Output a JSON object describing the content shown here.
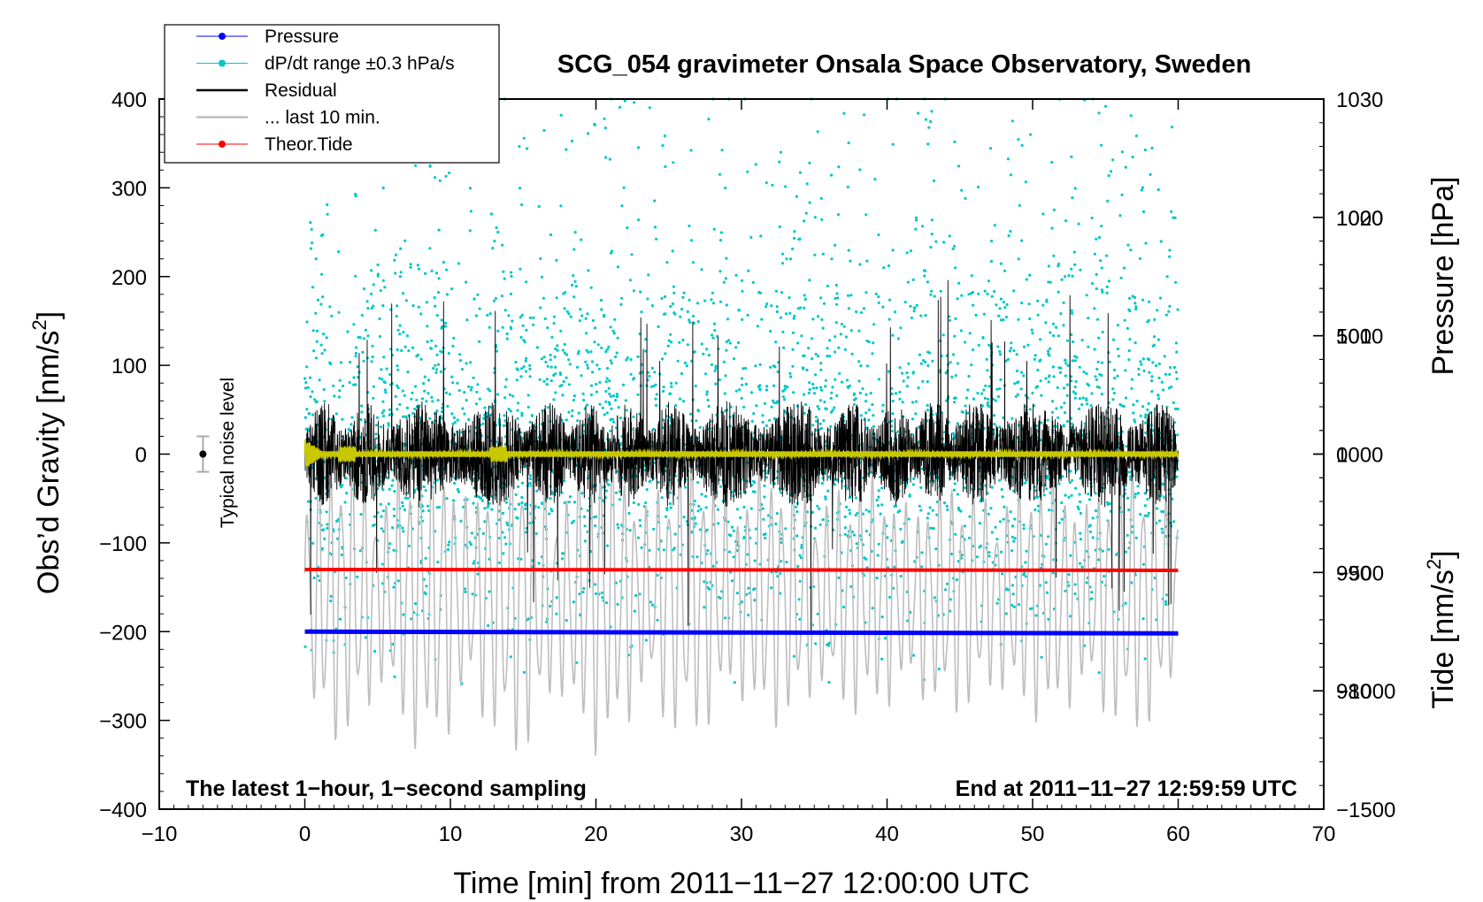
{
  "chart_data": {
    "type": "line",
    "title": "SCG_054 gravimeter Onsala Space Observatory, Sweden",
    "xlabel": "Time [min] from 2011−11−27 12:00:00 UTC",
    "ylabel": "Obs’d Gravity [nm/s",
    "ylabel_sup": "2",
    "ylabel_close": "]",
    "xlim": [
      -10,
      70
    ],
    "ylim": [
      -400,
      400
    ],
    "x_ticks": [
      -10,
      0,
      10,
      20,
      30,
      40,
      50,
      60,
      70
    ],
    "x_tick_labels": [
      "−10",
      "0",
      "10",
      "20",
      "30",
      "40",
      "50",
      "60",
      "70"
    ],
    "y_ticks": [
      400,
      300,
      200,
      100,
      0,
      -100,
      -200,
      -300,
      -400
    ],
    "y_tick_labels": [
      "400",
      "300",
      "200",
      "100",
      "0",
      "−100",
      "−200",
      "−300",
      "−400"
    ],
    "pressure_axis": {
      "label": "Pressure [hPa]",
      "range": [
        970,
        1030
      ],
      "ticks": [
        1030,
        1020,
        1010,
        1000,
        990,
        980
      ],
      "tick_labels": [
        "1030",
        "1020",
        "1010",
        "1000",
        "990",
        "980"
      ]
    },
    "tide_axis": {
      "label": "Tide [nm/s",
      "label_sup": "2",
      "label_close": "]",
      "range": [
        -1500,
        1500
      ],
      "ticks": [
        1000,
        500,
        0,
        -500,
        -1000,
        -1500
      ],
      "tick_labels": [
        "1000",
        "500",
        "0",
        "−500",
        "−1000",
        "−1500"
      ]
    },
    "series": [
      {
        "name": "Pressure",
        "color": "#0000ff",
        "axis": "pressure",
        "value_hpa": 985,
        "x_range": [
          0,
          60
        ]
      },
      {
        "name": "dP/dt range ±0.3 hPa/s",
        "color": "#00c8c8",
        "axis": "pressure",
        "center_hpa": 1001,
        "spread_hpa": 14,
        "x_range": [
          0,
          60
        ]
      },
      {
        "name": "Residual",
        "color": "#000000",
        "axis": "gravity",
        "typical_amplitude": 60,
        "peak_amplitude": 200,
        "x_range": [
          0,
          60
        ]
      },
      {
        "name": "... last 10 min.",
        "color": "#bebebe",
        "axis": "tide",
        "typical_amplitude": 700,
        "peak_amplitude": 1400,
        "x_range": [
          0,
          60
        ]
      },
      {
        "name": "Theor.Tide",
        "color": "#ff0000",
        "axis": "gravity",
        "value": -130,
        "x_range": [
          0,
          60
        ]
      }
    ],
    "overlay_color": "#c8c800",
    "noise_level": {
      "label": "Typical noise level",
      "x": -7,
      "value": 0,
      "error": 20
    },
    "annotations": {
      "bottom_left": "The latest 1−hour, 1−second sampling",
      "bottom_right": "End at 2011−11−27 12:59:59 UTC"
    },
    "legend_position": "top-left"
  }
}
